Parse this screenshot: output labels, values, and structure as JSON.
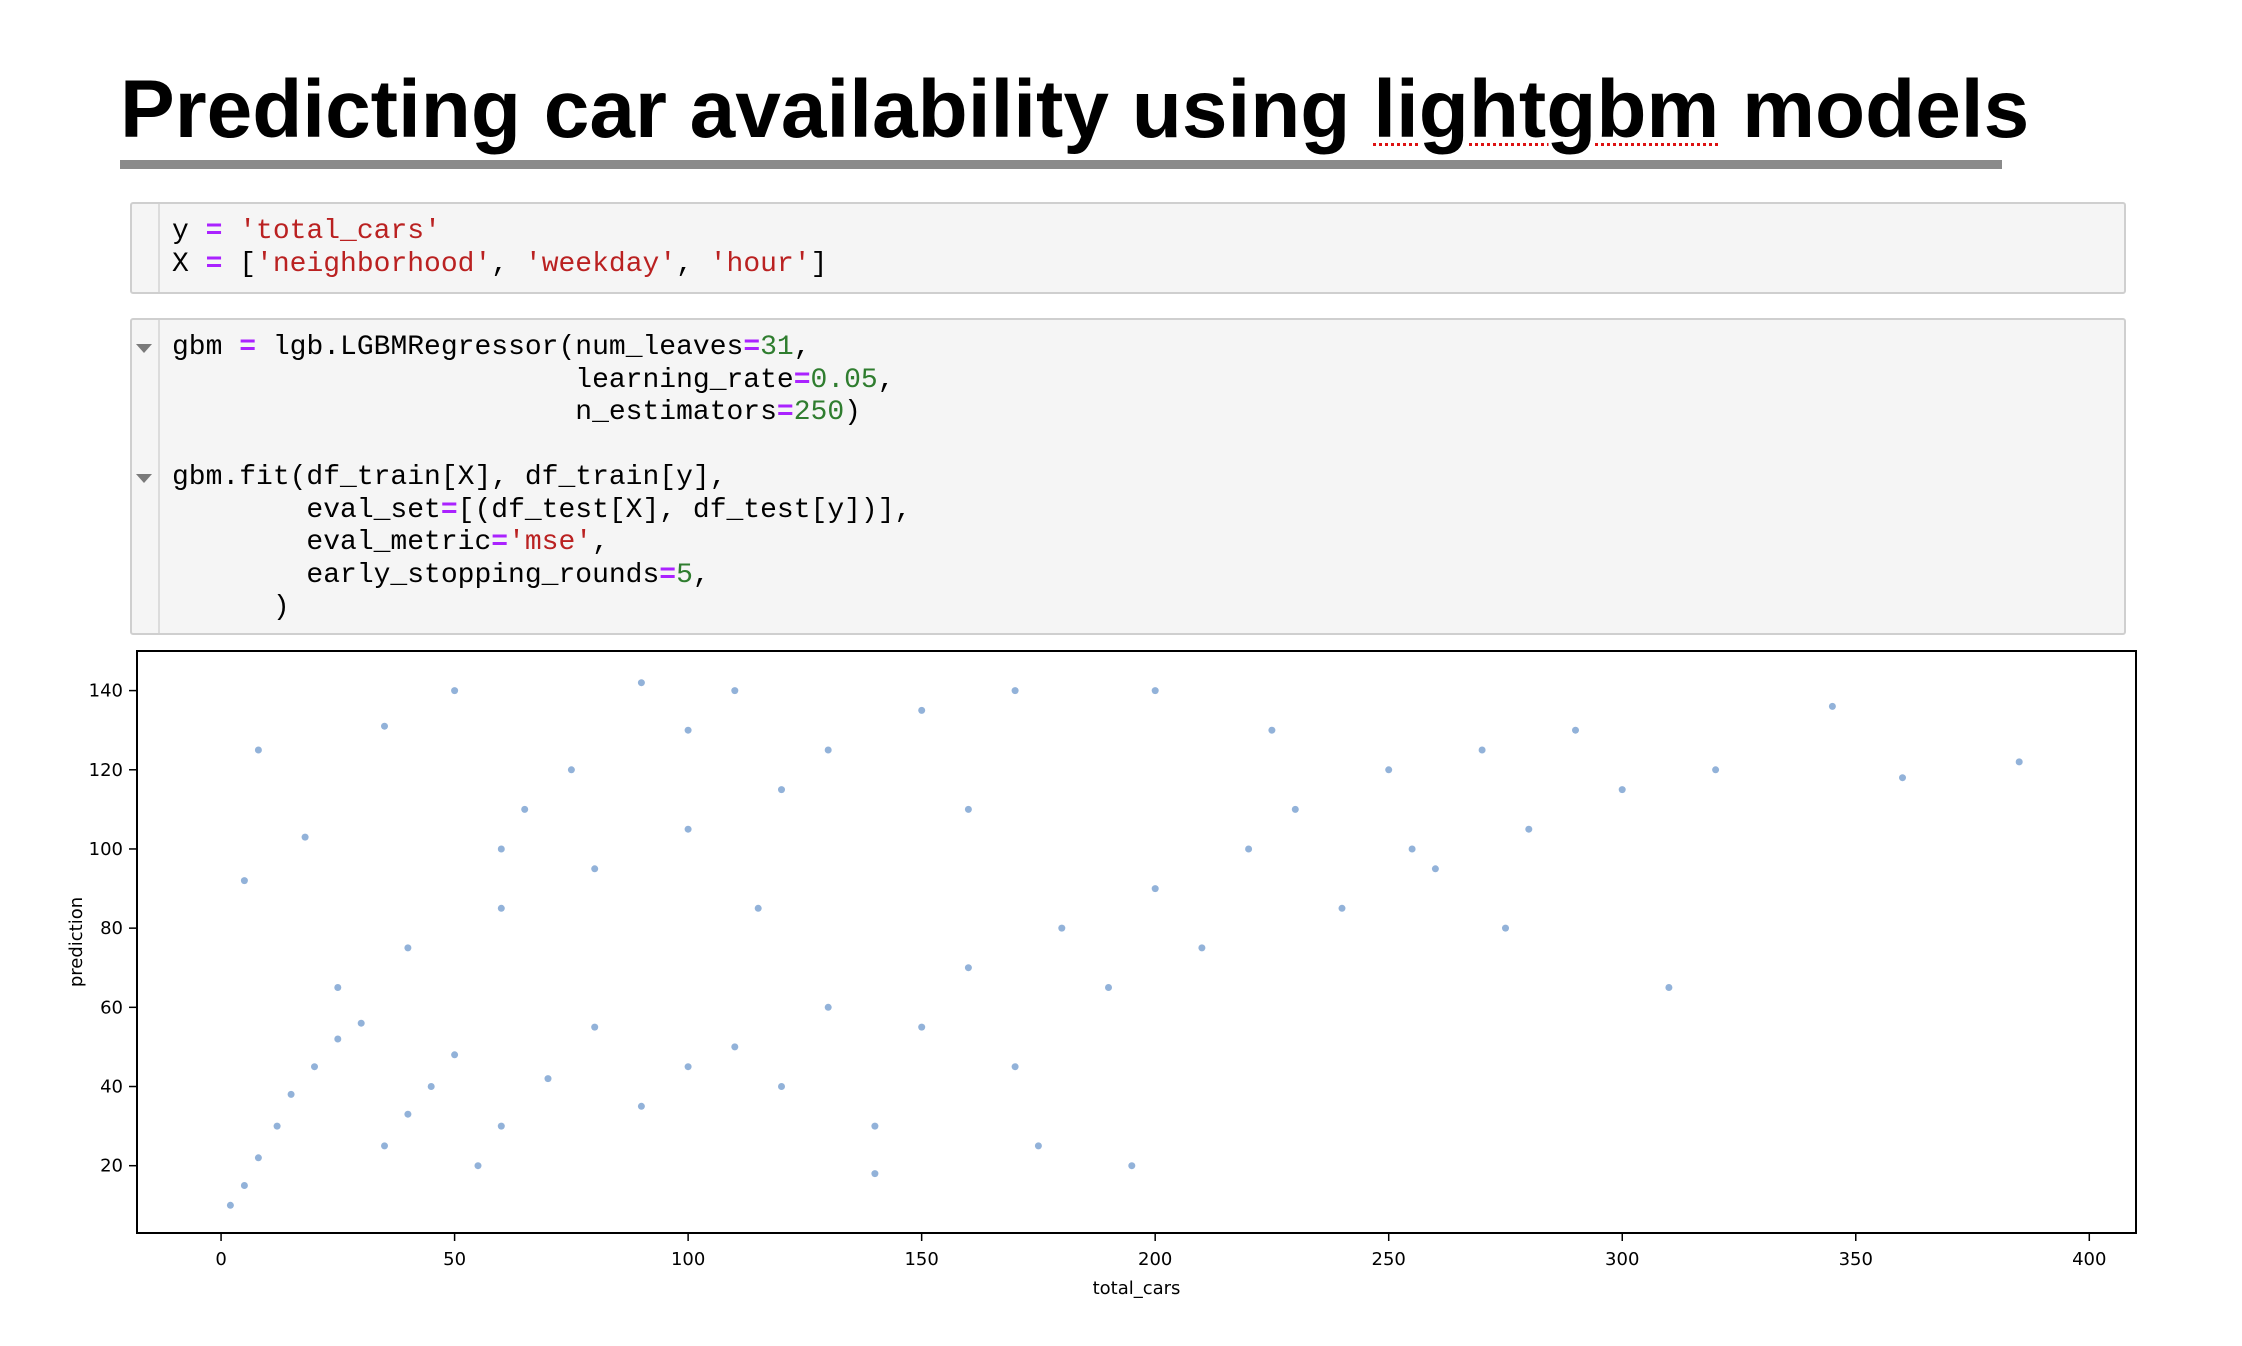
{
  "slide": {
    "title_pre": "Predicting car availability using ",
    "title_word": "lightgbm",
    "title_post": " models"
  },
  "cells": [
    {
      "lines": [
        [
          [
            "y ",
            ""
          ],
          [
            "=",
            "k"
          ],
          [
            " ",
            ""
          ],
          [
            "'total_cars'",
            "s"
          ]
        ],
        [
          [
            "X ",
            ""
          ],
          [
            "=",
            "k"
          ],
          [
            " [",
            ""
          ],
          [
            "'neighborhood'",
            "s"
          ],
          [
            ", ",
            ""
          ],
          [
            "'weekday'",
            "s"
          ],
          [
            ", ",
            ""
          ],
          [
            "'hour'",
            "s"
          ],
          [
            "]",
            ""
          ]
        ]
      ]
    },
    {
      "lines": [
        [
          [
            "gbm ",
            ""
          ],
          [
            "=",
            "k"
          ],
          [
            " lgb.LGBMRegressor(num_leaves",
            ""
          ],
          [
            "=",
            "k"
          ],
          [
            "31",
            "n"
          ],
          [
            ",",
            ""
          ]
        ],
        [
          [
            "                        learning_rate",
            ""
          ],
          [
            "=",
            "k"
          ],
          [
            "0.05",
            "n"
          ],
          [
            ",",
            ""
          ]
        ],
        [
          [
            "                        n_estimators",
            ""
          ],
          [
            "=",
            "k"
          ],
          [
            "250",
            "n"
          ],
          [
            ")",
            ""
          ]
        ],
        [],
        [
          [
            "gbm.fit(df_train[X], df_train[y],",
            ""
          ]
        ],
        [
          [
            "        eval_set",
            ""
          ],
          [
            "=",
            "k"
          ],
          [
            "[(df_test[X], df_test[y])],",
            ""
          ]
        ],
        [
          [
            "        eval_metric",
            ""
          ],
          [
            "=",
            "k"
          ],
          [
            "'mse'",
            "s"
          ],
          [
            ",",
            ""
          ]
        ],
        [
          [
            "        early_stopping_rounds",
            ""
          ],
          [
            "=",
            "k"
          ],
          [
            "5",
            "n"
          ],
          [
            ",",
            ""
          ]
        ],
        [
          [
            "      )",
            ""
          ]
        ]
      ]
    }
  ],
  "colors": {
    "point": "#4a7fc0",
    "axis": "#000000",
    "keyword": "#aa22ff",
    "string": "#ba2121",
    "number": "#2f7d2f"
  },
  "chart_data": {
    "type": "scatter",
    "title": "",
    "xlabel": "total_cars",
    "ylabel": "prediction",
    "xlim": [
      -18,
      410
    ],
    "ylim": [
      3,
      150
    ],
    "x_ticks": [
      0,
      50,
      100,
      150,
      200,
      250,
      300,
      350,
      400
    ],
    "y_ticks": [
      20,
      40,
      60,
      80,
      100,
      120,
      140
    ],
    "grid": false,
    "legend": "none",
    "series": [
      {
        "points": [
          [
            2,
            10
          ],
          [
            5,
            15
          ],
          [
            8,
            22
          ],
          [
            12,
            30
          ],
          [
            15,
            38
          ],
          [
            20,
            45
          ],
          [
            25,
            52
          ],
          [
            30,
            56
          ],
          [
            35,
            25
          ],
          [
            40,
            33
          ],
          [
            45,
            40
          ],
          [
            50,
            48
          ],
          [
            55,
            20
          ],
          [
            60,
            30
          ],
          [
            70,
            42
          ],
          [
            80,
            55
          ],
          [
            90,
            35
          ],
          [
            100,
            45
          ],
          [
            110,
            50
          ],
          [
            120,
            40
          ],
          [
            130,
            60
          ],
          [
            140,
            30
          ],
          [
            150,
            55
          ],
          [
            160,
            70
          ],
          [
            170,
            45
          ],
          [
            180,
            80
          ],
          [
            190,
            65
          ],
          [
            200,
            90
          ],
          [
            210,
            75
          ],
          [
            220,
            100
          ],
          [
            230,
            110
          ],
          [
            240,
            85
          ],
          [
            250,
            120
          ],
          [
            260,
            95
          ],
          [
            270,
            125
          ],
          [
            280,
            105
          ],
          [
            290,
            130
          ],
          [
            300,
            115
          ],
          [
            320,
            120
          ],
          [
            345,
            136
          ],
          [
            360,
            118
          ],
          [
            385,
            122
          ],
          [
            25,
            65
          ],
          [
            40,
            75
          ],
          [
            60,
            85
          ],
          [
            80,
            95
          ],
          [
            100,
            105
          ],
          [
            120,
            115
          ],
          [
            100,
            130
          ],
          [
            110,
            140
          ],
          [
            90,
            142
          ],
          [
            130,
            125
          ],
          [
            150,
            135
          ],
          [
            170,
            140
          ],
          [
            60,
            100
          ],
          [
            75,
            120
          ],
          [
            50,
            140
          ],
          [
            200,
            140
          ],
          [
            225,
            130
          ],
          [
            255,
            100
          ],
          [
            275,
            80
          ],
          [
            310,
            65
          ],
          [
            195,
            20
          ],
          [
            175,
            25
          ],
          [
            140,
            18
          ],
          [
            5,
            92
          ],
          [
            8,
            125
          ],
          [
            18,
            103
          ],
          [
            35,
            131
          ],
          [
            65,
            110
          ],
          [
            115,
            85
          ],
          [
            160,
            110
          ]
        ]
      }
    ]
  }
}
